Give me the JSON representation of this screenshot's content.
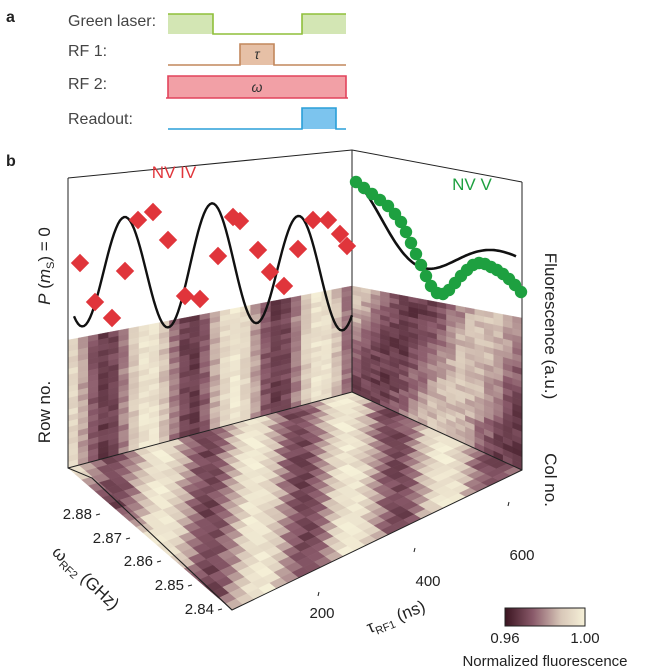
{
  "panel_a": {
    "letter": "a",
    "rows": [
      {
        "label": "Green laser:",
        "pulse_text": "",
        "color": "#8fbf3a",
        "fill": "#d3e6b4"
      },
      {
        "label": "RF 1:",
        "pulse_text": "τ",
        "color": "#c2875c",
        "fill": "#e6c0a6"
      },
      {
        "label": "RF 2:",
        "pulse_text": "ω",
        "color": "#e2435b",
        "fill": "#f2a0a6"
      },
      {
        "label": "Readout:",
        "pulse_text": "",
        "color": "#2a9fd8",
        "fill": "#7cc4ee"
      }
    ]
  },
  "panel_b": {
    "letter": "b",
    "nv4_title": "NV IV",
    "nv5_title": "NV V",
    "nv4_color": "#e0353b",
    "nv5_color": "#1ea040",
    "left_ylabel": {
      "p": "P",
      "paren_open": " (",
      "m": "m",
      "sub": "S",
      "tail": ") = 0"
    },
    "right_ylabel": "Fluorescence (a.u.)",
    "row_label": "Row no.",
    "col_label": "Col no.",
    "x_axis": {
      "sym": "τ",
      "sub": "RF1",
      "unit": " (ns)",
      "ticks": [
        "200",
        "400",
        "600"
      ]
    },
    "y_axis": {
      "sym": "ω",
      "sub": "RF2",
      "unit": " (GHz)",
      "ticks": [
        "2.84",
        "2.85",
        "2.86",
        "2.87",
        "2.88"
      ]
    },
    "colorbar": {
      "min": "0.96",
      "max": "1.00",
      "title": "Normalized fluorescence",
      "low_color": "#3a1420",
      "high_color": "#f6f1d8"
    }
  }
}
